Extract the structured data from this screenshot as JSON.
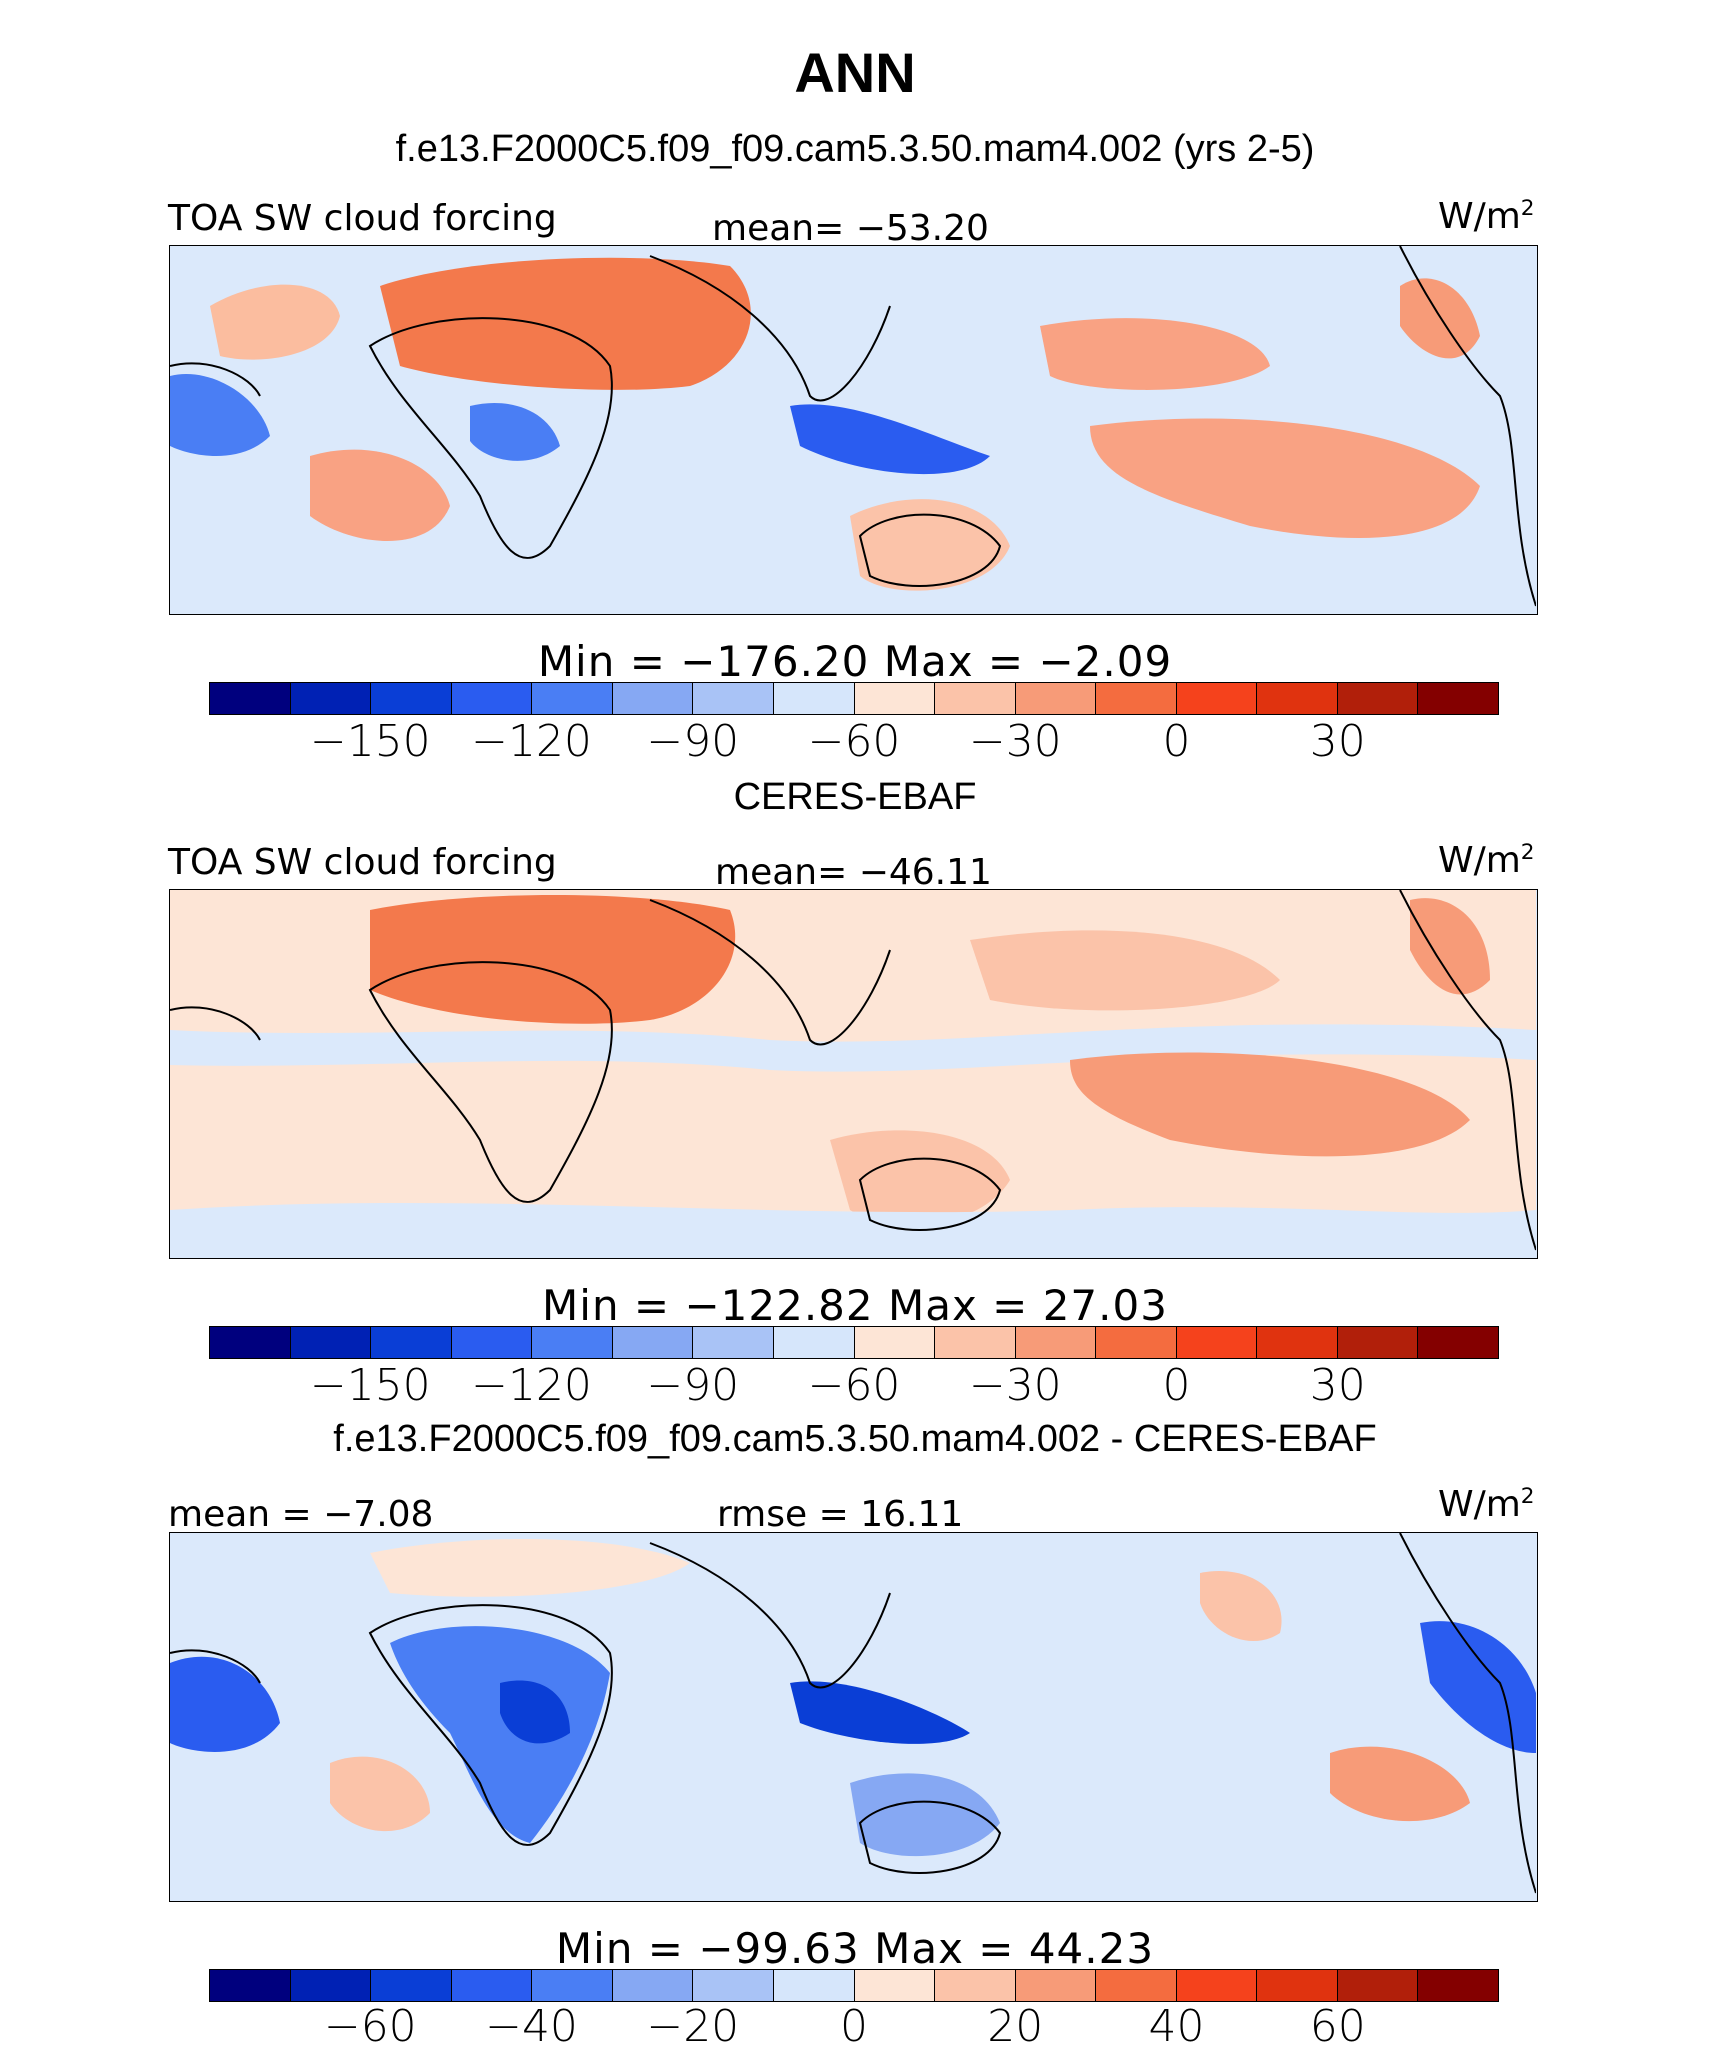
{
  "page": {
    "title": "ANN",
    "colors": [
      "#00007e",
      "#0021b4",
      "#0a3ed6",
      "#2a5cf0",
      "#4a7ef4",
      "#86a8f3",
      "#a9c3f6",
      "#d6e6fb",
      "#fde5d6",
      "#fbc3a9",
      "#f79b78",
      "#f46c3f",
      "#f5421c",
      "#e0330f",
      "#b11f0a",
      "#840000"
    ]
  },
  "chart_data": [
    {
      "type": "heatmap",
      "subtitle": "f.e13.F2000C5.f09_f09.cam5.3.50.mam4.002 (yrs 2-5)",
      "left_label": "TOA SW cloud forcing",
      "center_label": "mean= −53.20",
      "units_base": "W/m",
      "units_exp": "2",
      "minmax": "Min = −176.20 Max = −2.09",
      "min": -176.2,
      "max": -2.09,
      "mean": -53.2,
      "colorbar_ticks": [
        "−150",
        "−120",
        "−90",
        "−60",
        "−30",
        "0",
        "30"
      ]
    },
    {
      "type": "heatmap",
      "subtitle": "CERES-EBAF",
      "left_label": "TOA SW cloud forcing",
      "center_label": "mean= −46.11",
      "units_base": "W/m",
      "units_exp": "2",
      "minmax": "Min = −122.82 Max = 27.03",
      "min": -122.82,
      "max": 27.03,
      "mean": -46.11,
      "colorbar_ticks": [
        "−150",
        "−120",
        "−90",
        "−60",
        "−30",
        "0",
        "30"
      ]
    },
    {
      "type": "heatmap",
      "subtitle": "f.e13.F2000C5.f09_f09.cam5.3.50.mam4.002 - CERES-EBAF",
      "left_label": "mean = −7.08",
      "center_label": "rmse = 16.11",
      "units_base": "W/m",
      "units_exp": "2",
      "minmax": "Min = −99.63 Max = 44.23",
      "min": -99.63,
      "max": 44.23,
      "mean": -7.08,
      "rmse": 16.11,
      "colorbar_ticks": [
        "−60",
        "−40",
        "−20",
        "0",
        "20",
        "40",
        "60"
      ]
    }
  ]
}
